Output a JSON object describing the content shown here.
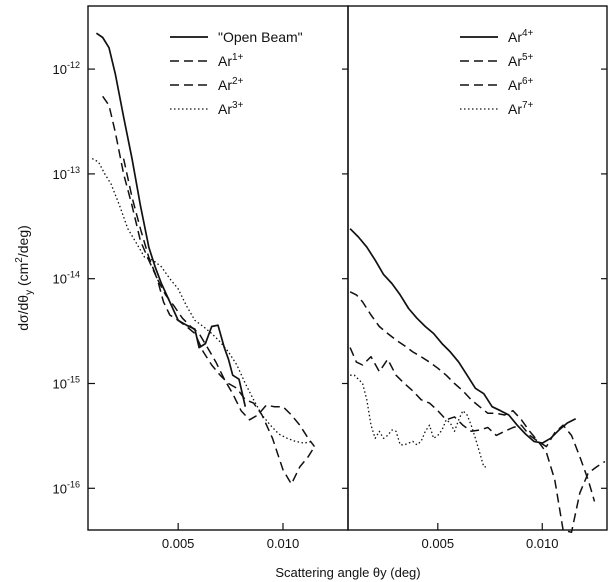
{
  "chart_data": {
    "type": "line",
    "xlabel": "Scattering angle θy (deg)",
    "ylabel": "dσ/dθy (cm²/deg)",
    "ylabel_parts": {
      "pre": "dσ/dθ",
      "sub": "y",
      "mid": " (cm",
      "sup": "2",
      "post": "/deg)"
    },
    "y_scale": "log",
    "ylim": [
      4e-17,
      4e-12
    ],
    "xlim": [
      0.0007,
      0.0131
    ],
    "yticks": [
      {
        "value": 1e-12,
        "base": "10",
        "exp": "-12"
      },
      {
        "value": 1e-13,
        "base": "10",
        "exp": "-13"
      },
      {
        "value": 1e-14,
        "base": "10",
        "exp": "-14"
      },
      {
        "value": 1e-15,
        "base": "10",
        "exp": "-15"
      },
      {
        "value": 1e-16,
        "base": "10",
        "exp": "-16"
      }
    ],
    "xticks": [
      {
        "value": 0.005,
        "label": "0.005"
      },
      {
        "value": 0.01,
        "label": "0.010"
      }
    ],
    "grid": false,
    "panels": [
      {
        "legend_position": "top-right",
        "series": [
          {
            "name": "\"Open Beam\"",
            "name_base": "\"Open Beam\"",
            "name_sup": "",
            "style": "solid",
            "color": "#111111",
            "x": [
              0.0011,
              0.0014,
              0.0017,
              0.002,
              0.0024,
              0.0028,
              0.0032,
              0.0036,
              0.0039,
              0.0042,
              0.0046,
              0.005,
              0.0054,
              0.0058,
              0.006,
              0.0063,
              0.0066,
              0.0069,
              0.0072,
              0.0074,
              0.0076,
              0.0079,
              0.0082
            ],
            "y": [
              2.2e-12,
              2e-12,
              1.6e-12,
              9e-13,
              3.5e-13,
              1.4e-13,
              5e-14,
              2e-14,
              1.3e-14,
              9e-15,
              6e-15,
              4e-15,
              3.6e-15,
              3.3e-15,
              2.2e-15,
              2.4e-15,
              3.5e-15,
              3.6e-15,
              2.2e-15,
              1.7e-15,
              1.2e-15,
              1.1e-15,
              6e-16
            ]
          },
          {
            "name": "Ar1+",
            "name_base": "Ar",
            "name_sup": "1+",
            "style": "dashed",
            "color": "#111111",
            "x": [
              0.0014,
              0.0017,
              0.002,
              0.0024,
              0.0028,
              0.0032,
              0.0036,
              0.004,
              0.0043,
              0.0046,
              0.005,
              0.0054,
              0.0058,
              0.0062,
              0.0066,
              0.007,
              0.0074,
              0.0078,
              0.0082,
              0.0086,
              0.009,
              0.0095,
              0.01,
              0.0104,
              0.0108,
              0.0112,
              0.0115
            ],
            "y": [
              5.5e-13,
              4.5e-13,
              2.5e-13,
              1e-13,
              5e-14,
              2.3e-14,
              1.5e-14,
              1e-14,
              6e-15,
              4.5e-15,
              4e-15,
              3.5e-15,
              3e-15,
              2e-15,
              1.5e-15,
              1.2e-15,
              1e-15,
              9e-16,
              7e-16,
              6.5e-16,
              5e-16,
              3e-16,
              1.5e-16,
              1.1e-16,
              1.6e-16,
              2e-16,
              2.5e-16
            ]
          },
          {
            "name": "Ar2+",
            "name_base": "Ar",
            "name_sup": "2+",
            "style": "dashed",
            "color": "#111111",
            "x": [
              0.0024,
              0.0028,
              0.0032,
              0.0036,
              0.004,
              0.0044,
              0.0048,
              0.0052,
              0.0056,
              0.006,
              0.0064,
              0.0068,
              0.0072,
              0.0076,
              0.008,
              0.0084,
              0.0088,
              0.0092,
              0.0096,
              0.01,
              0.0104,
              0.0108,
              0.0112,
              0.0115
            ],
            "y": [
              1.4e-13,
              6e-14,
              3e-14,
              1.6e-14,
              1e-14,
              7e-15,
              5.5e-15,
              4.2e-15,
              3.5e-15,
              3e-15,
              2.2e-15,
              1.6e-15,
              1.1e-15,
              8e-16,
              5.5e-16,
              4.5e-16,
              5e-16,
              6.2e-16,
              6e-16,
              6e-16,
              5e-16,
              4e-16,
              3e-16,
              2.5e-16
            ]
          },
          {
            "name": "Ar3+",
            "name_base": "Ar",
            "name_sup": "3+",
            "style": "dotted",
            "color": "#111111",
            "x": [
              0.0009,
              0.0012,
              0.0015,
              0.0018,
              0.0022,
              0.0026,
              0.003,
              0.0034,
              0.0038,
              0.0042,
              0.0046,
              0.005,
              0.0054,
              0.0058,
              0.0062,
              0.0066,
              0.007,
              0.0074,
              0.0078,
              0.0082,
              0.0086,
              0.009,
              0.0094,
              0.0098,
              0.0102,
              0.0106,
              0.011,
              0.0114
            ],
            "y": [
              1.4e-13,
              1.3e-13,
              1e-13,
              8e-14,
              5e-14,
              3e-14,
              2.2e-14,
              1.6e-14,
              1.5e-14,
              1.3e-14,
              1e-14,
              8e-15,
              5.5e-15,
              4e-15,
              3.5e-15,
              3e-15,
              2.5e-15,
              2e-15,
              1.5e-15,
              1e-15,
              7e-16,
              5e-16,
              4e-16,
              3.3e-16,
              3e-16,
              2.8e-16,
              2.7e-16,
              2.8e-16
            ]
          }
        ]
      },
      {
        "legend_position": "top-right",
        "series": [
          {
            "name": "Ar4+",
            "name_base": "Ar",
            "name_sup": "4+",
            "style": "solid",
            "color": "#111111",
            "x": [
              0.0008,
              0.0012,
              0.0016,
              0.002,
              0.0024,
              0.0028,
              0.0032,
              0.0036,
              0.004,
              0.0044,
              0.0048,
              0.0052,
              0.0056,
              0.006,
              0.0064,
              0.0068,
              0.0072,
              0.0076,
              0.008,
              0.0084,
              0.0088,
              0.0092,
              0.0096,
              0.01,
              0.0104,
              0.0108,
              0.0112,
              0.0116
            ],
            "y": [
              3e-14,
              2.5e-14,
              2e-14,
              1.5e-14,
              1.1e-14,
              9e-15,
              7e-15,
              5.2e-15,
              4.2e-15,
              3.5e-15,
              3e-15,
              2.4e-15,
              2e-15,
              1.6e-15,
              1.2e-15,
              9e-16,
              8e-16,
              6e-16,
              5.5e-16,
              5e-16,
              4e-16,
              3.3e-16,
              2.8e-16,
              2.7e-16,
              3e-16,
              3.6e-16,
              4.2e-16,
              4.6e-16
            ]
          },
          {
            "name": "Ar5+",
            "name_base": "Ar",
            "name_sup": "5+",
            "style": "dashed",
            "color": "#111111",
            "x": [
              0.0008,
              0.0011,
              0.0014,
              0.0018,
              0.0022,
              0.0026,
              0.003,
              0.0034,
              0.0038,
              0.0042,
              0.0046,
              0.005,
              0.0054,
              0.0058,
              0.0062,
              0.0066,
              0.007,
              0.0074,
              0.0078,
              0.0082,
              0.0086,
              0.009,
              0.0094,
              0.0098,
              0.0102,
              0.0106,
              0.011,
              0.0114,
              0.0118,
              0.0122,
              0.0126,
              0.013
            ],
            "y": [
              7.5e-15,
              7e-15,
              6e-15,
              4.5e-15,
              3.5e-15,
              3e-15,
              2.6e-15,
              2.3e-15,
              2e-15,
              1.8e-15,
              1.6e-15,
              1.4e-15,
              1.2e-15,
              1e-15,
              8.5e-16,
              7e-16,
              6e-16,
              5.2e-16,
              5.2e-16,
              5e-16,
              5.5e-16,
              4.5e-16,
              3.5e-16,
              2.8e-16,
              2.2e-16,
              1.2e-16,
              4e-17,
              3.8e-17,
              9e-17,
              1.4e-16,
              1.6e-16,
              1.8e-16
            ]
          },
          {
            "name": "Ar6+",
            "name_base": "Ar",
            "name_sup": "6+",
            "style": "dashed",
            "color": "#111111",
            "x": [
              0.0008,
              0.0011,
              0.0014,
              0.0018,
              0.0022,
              0.0026,
              0.003,
              0.0034,
              0.0038,
              0.0042,
              0.0046,
              0.005,
              0.0054,
              0.0058,
              0.0062,
              0.0066,
              0.007,
              0.0074,
              0.0078,
              0.0082,
              0.0086,
              0.009,
              0.0094,
              0.0098,
              0.0102,
              0.0106,
              0.011,
              0.0114,
              0.0118,
              0.0122,
              0.0125
            ],
            "y": [
              2.2e-15,
              1.6e-15,
              1.5e-15,
              1.8e-15,
              1.3e-15,
              1.7e-15,
              1.2e-15,
              1e-15,
              8.5e-16,
              7e-16,
              6.5e-16,
              5.5e-16,
              4.5e-16,
              4.8e-16,
              4e-16,
              3.5e-16,
              3.6e-16,
              3.8e-16,
              3.2e-16,
              3.5e-16,
              3.8e-16,
              4e-16,
              3.2e-16,
              2.8e-16,
              2.5e-16,
              3.4e-16,
              4e-16,
              3.2e-16,
              2e-16,
              1.2e-16,
              7.5e-17
            ]
          },
          {
            "name": "Ar7+",
            "name_base": "Ar",
            "name_sup": "7+",
            "style": "dotted",
            "color": "#111111",
            "x": [
              0.0008,
              0.001,
              0.0012,
              0.0014,
              0.0016,
              0.0018,
              0.002,
              0.0022,
              0.0024,
              0.0026,
              0.0028,
              0.003,
              0.0032,
              0.0034,
              0.0036,
              0.0038,
              0.004,
              0.0042,
              0.0044,
              0.0046,
              0.0048,
              0.005,
              0.0052,
              0.0054,
              0.0056,
              0.0058,
              0.006,
              0.0062,
              0.0064,
              0.0066,
              0.0068,
              0.007,
              0.0072,
              0.0074
            ],
            "y": [
              1.2e-15,
              1.2e-15,
              1.1e-15,
              1e-15,
              7e-16,
              4e-16,
              3e-16,
              3.5e-16,
              3e-16,
              3.2e-16,
              3.6e-16,
              3.5e-16,
              2.6e-16,
              2.6e-16,
              2.7e-16,
              2.8e-16,
              2.6e-16,
              2.8e-16,
              3.5e-16,
              4e-16,
              3e-16,
              3.2e-16,
              3.6e-16,
              4.5e-16,
              4.2e-16,
              3.5e-16,
              4.5e-16,
              5.5e-16,
              5e-16,
              4e-16,
              3e-16,
              2.2e-16,
              1.6e-16,
              1.6e-16
            ]
          }
        ]
      }
    ]
  }
}
